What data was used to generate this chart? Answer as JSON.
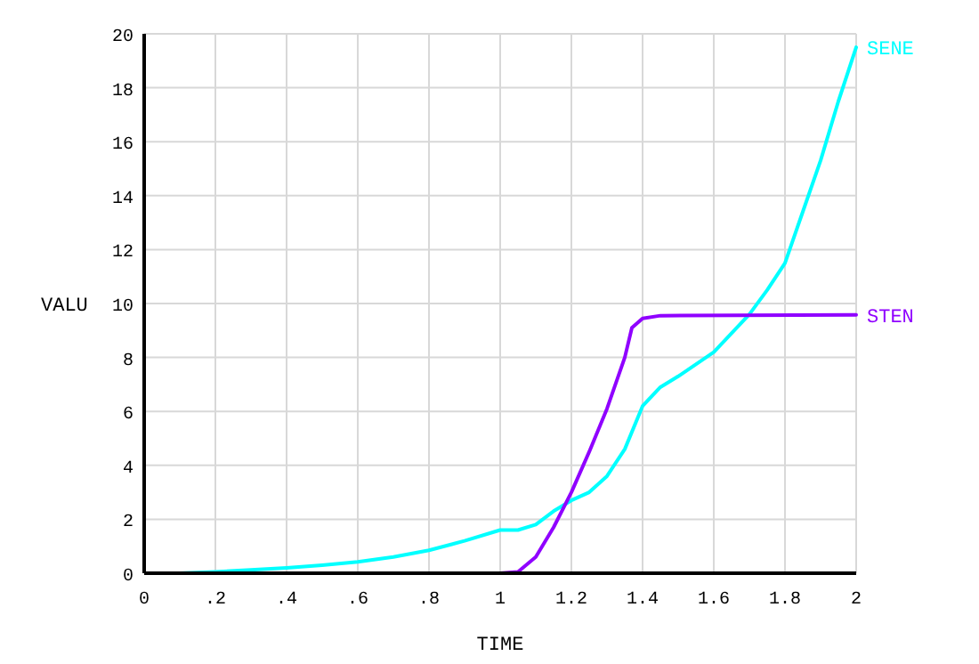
{
  "chart_data": {
    "type": "line",
    "xlabel": "TIME",
    "ylabel": "VALU",
    "xlim": [
      0,
      2
    ],
    "ylim": [
      0,
      20
    ],
    "xticks": [
      0,
      {
        "value": 0.2,
        "label": ".2"
      },
      {
        "value": 0.4,
        "label": ".4"
      },
      {
        "value": 0.6,
        "label": ".6"
      },
      {
        "value": 0.8,
        "label": ".8"
      },
      1,
      1.2,
      1.4,
      1.6,
      1.8,
      2
    ],
    "yticks": [
      0,
      2,
      4,
      6,
      8,
      10,
      12,
      14,
      16,
      18,
      20
    ],
    "grid": true,
    "series": [
      {
        "name": "SENE",
        "color": "#00ffff",
        "x": [
          0.1,
          0.2,
          0.3,
          0.4,
          0.5,
          0.6,
          0.7,
          0.8,
          0.9,
          1.0,
          1.05,
          1.1,
          1.15,
          1.2,
          1.25,
          1.3,
          1.35,
          1.4,
          1.45,
          1.5,
          1.6,
          1.7,
          1.75,
          1.8,
          1.85,
          1.9,
          1.95,
          2.0
        ],
        "values": [
          0,
          0.05,
          0.12,
          0.2,
          0.3,
          0.42,
          0.6,
          0.85,
          1.2,
          1.6,
          1.6,
          1.8,
          2.3,
          2.7,
          3.0,
          3.6,
          4.6,
          6.2,
          6.9,
          7.3,
          8.2,
          9.6,
          10.5,
          11.5,
          13.4,
          15.3,
          17.5,
          19.5
        ]
      },
      {
        "name": "STEN",
        "color": "#9000ff",
        "x": [
          1.0,
          1.05,
          1.1,
          1.15,
          1.2,
          1.25,
          1.3,
          1.35,
          1.37,
          1.4,
          1.45,
          2.0
        ],
        "values": [
          0,
          0.05,
          0.6,
          1.7,
          3.0,
          4.5,
          6.1,
          8.0,
          9.1,
          9.45,
          9.55,
          9.58
        ]
      }
    ]
  }
}
